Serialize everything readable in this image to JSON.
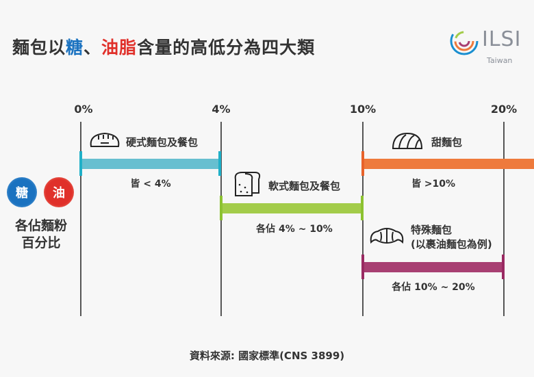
{
  "title": {
    "part1": "麵包以",
    "sugar": "糖",
    "sep": "、",
    "oil": "油脂",
    "part2": "含量的高低分為四大類"
  },
  "logo": {
    "text": "ILSI",
    "sub": "Taiwan"
  },
  "colors": {
    "sugar": "#1a72c0",
    "oil": "#e0302a",
    "hard": "#67bfd0",
    "soft": "#a3cc4a",
    "sweet": "#ee7a3c",
    "special": "#a83f72"
  },
  "axis_ticks": [
    "0%",
    "4%",
    "10%",
    "20%"
  ],
  "legend": {
    "sugar_badge": "糖",
    "oil_badge": "油",
    "caption_line1": "各佔麵粉",
    "caption_line2": "百分比"
  },
  "categories": [
    {
      "name": "硬式麵包及餐包",
      "range": "皆 < 4%",
      "min": 0,
      "max": 4,
      "icon": "baguette-icon"
    },
    {
      "name": "軟式麵包及餐包",
      "range": "各佔 4% ~ 10%",
      "min": 4,
      "max": 10,
      "icon": "loaf-bread-icon"
    },
    {
      "name": "甜麵包",
      "range": "皆 >10%",
      "min": 10,
      "max": null,
      "icon": "bun-icon"
    },
    {
      "name": "特殊麵包",
      "name2": "(以裹油麵包為例)",
      "range": "各佔 10% ~ 20%",
      "min": 10,
      "max": 20,
      "icon": "croissant-icon"
    }
  ],
  "source": "資料來源: 國家標準(CNS 3899)"
}
